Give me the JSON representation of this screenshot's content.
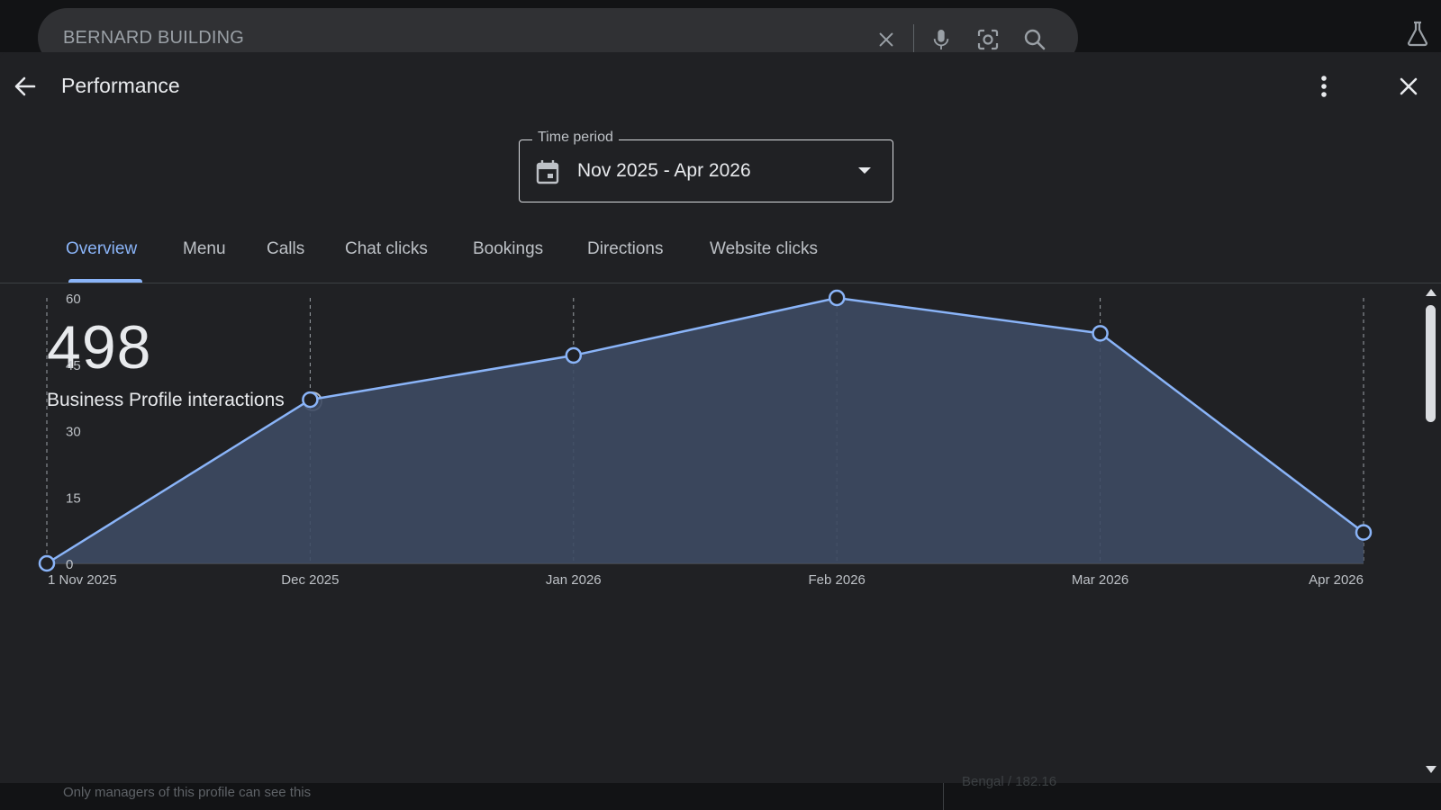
{
  "search": {
    "query": "BERNARD BUILDING"
  },
  "icons": {
    "back": "arrow-left-icon",
    "close": "close-icon",
    "more": "more-vert-icon",
    "search_clear": "clear-icon",
    "mic": "mic-icon",
    "lens": "camera-lens-icon",
    "search": "search-icon",
    "labs": "flask-icon",
    "calendar": "calendar-icon",
    "info": "info-icon"
  },
  "header": {
    "title": "Performance"
  },
  "time_period": {
    "label": "Time period",
    "value": "Nov 2025 - Apr 2026"
  },
  "tabs": [
    {
      "label": "Overview",
      "active": true
    },
    {
      "label": "Menu"
    },
    {
      "label": "Calls"
    },
    {
      "label": "Chat clicks"
    },
    {
      "label": "Bookings"
    },
    {
      "label": "Directions"
    },
    {
      "label": "Website clicks"
    }
  ],
  "metric": {
    "value": "498",
    "label": "Business Profile interactions"
  },
  "colors": {
    "accent": "#8ab4f8",
    "area_fill": "#3d4a63",
    "background": "#202124"
  },
  "chart_data": {
    "type": "area",
    "categories": [
      "1 Nov 2025",
      "Dec 2025",
      "Jan 2026",
      "Feb 2026",
      "Mar 2026",
      "Apr 2026"
    ],
    "series": [
      {
        "values": [
          0,
          37,
          47,
          60,
          52,
          7
        ]
      }
    ],
    "yticks": [
      "0",
      "15",
      "30",
      "45",
      "60"
    ],
    "ylim": [
      0,
      60
    ],
    "xlabel": "",
    "ylabel": "",
    "grid": "vertical-dashed",
    "legend": "none"
  },
  "footer": {
    "note": "Only managers of this profile can see this",
    "right_text": "Bengal / 182.16"
  }
}
